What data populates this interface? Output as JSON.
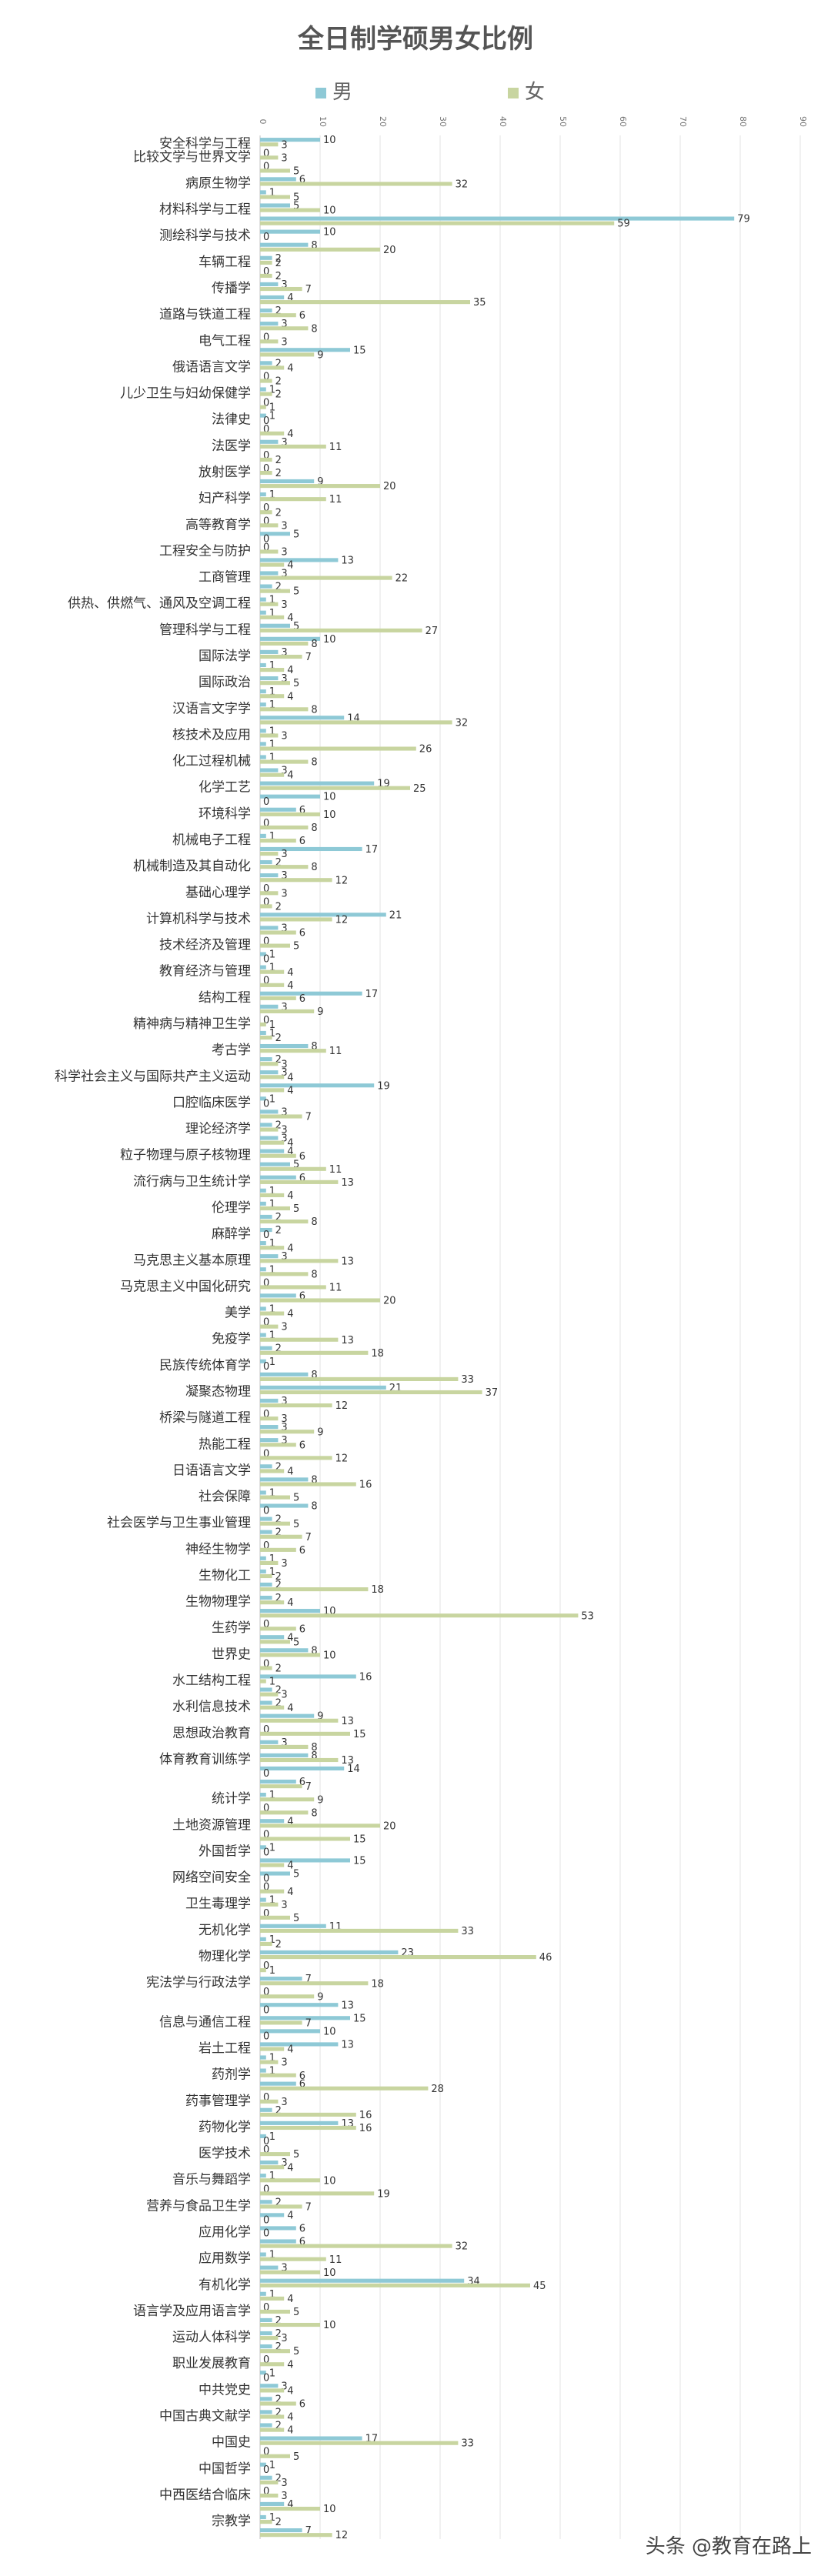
{
  "chart_data": {
    "type": "bar",
    "orientation": "horizontal",
    "title": "全日制学硕男女比例",
    "legend_position": "top",
    "grid": true,
    "xlim": [
      0,
      90
    ],
    "x_ticks": [
      "0",
      "10",
      "20",
      "30",
      "40",
      "50",
      "60",
      "70",
      "80",
      "90"
    ],
    "colors": {
      "男": "#8ec9d6",
      "女": "#c8d5a0"
    },
    "series": [
      {
        "name": "男"
      },
      {
        "name": "女"
      }
    ],
    "rows": [
      {
        "label": "安全科学与工程",
        "values": [
          10,
          3
        ]
      },
      {
        "label": "比较文学与世界文学",
        "values": [
          0,
          3
        ]
      },
      {
        "label": "",
        "values": [
          0,
          5
        ]
      },
      {
        "label": "病原生物学",
        "values": [
          6,
          32
        ]
      },
      {
        "label": "",
        "values": [
          1,
          5
        ]
      },
      {
        "label": "材料科学与工程",
        "values": [
          5,
          10
        ]
      },
      {
        "label": "",
        "values": [
          79,
          59
        ]
      },
      {
        "label": "测绘科学与技术",
        "values": [
          10,
          0
        ]
      },
      {
        "label": "",
        "values": [
          8,
          20
        ]
      },
      {
        "label": "车辆工程",
        "values": [
          2,
          2
        ]
      },
      {
        "label": "",
        "values": [
          0,
          2
        ]
      },
      {
        "label": "传播学",
        "values": [
          3,
          7
        ]
      },
      {
        "label": "",
        "values": [
          4,
          35
        ]
      },
      {
        "label": "道路与铁道工程",
        "values": [
          2,
          6
        ]
      },
      {
        "label": "",
        "values": [
          3,
          8
        ]
      },
      {
        "label": "电气工程",
        "values": [
          0,
          3
        ]
      },
      {
        "label": "",
        "values": [
          15,
          9
        ]
      },
      {
        "label": "俄语语言文学",
        "values": [
          2,
          4
        ]
      },
      {
        "label": "",
        "values": [
          0,
          2
        ]
      },
      {
        "label": "儿少卫生与妇幼保健学",
        "values": [
          1,
          2
        ]
      },
      {
        "label": "",
        "values": [
          0,
          1
        ]
      },
      {
        "label": "法律史",
        "values": [
          1,
          0
        ]
      },
      {
        "label": "",
        "values": [
          0,
          4
        ]
      },
      {
        "label": "法医学",
        "values": [
          3,
          11
        ]
      },
      {
        "label": "",
        "values": [
          0,
          2
        ]
      },
      {
        "label": "放射医学",
        "values": [
          0,
          2
        ]
      },
      {
        "label": "",
        "values": [
          9,
          20
        ]
      },
      {
        "label": "妇产科学",
        "values": [
          1,
          11
        ]
      },
      {
        "label": "",
        "values": [
          0,
          2
        ]
      },
      {
        "label": "高等教育学",
        "values": [
          0,
          3
        ]
      },
      {
        "label": "",
        "values": [
          5,
          0
        ]
      },
      {
        "label": "工程安全与防护",
        "values": [
          0,
          3
        ]
      },
      {
        "label": "",
        "values": [
          13,
          4
        ]
      },
      {
        "label": "工商管理",
        "values": [
          3,
          22
        ]
      },
      {
        "label": "",
        "values": [
          2,
          5
        ]
      },
      {
        "label": "供热、供燃气、通风及空调工程",
        "values": [
          1,
          3
        ]
      },
      {
        "label": "",
        "values": [
          1,
          4
        ]
      },
      {
        "label": "管理科学与工程",
        "values": [
          5,
          27
        ]
      },
      {
        "label": "",
        "values": [
          10,
          8
        ]
      },
      {
        "label": "国际法学",
        "values": [
          3,
          7
        ]
      },
      {
        "label": "",
        "values": [
          1,
          4
        ]
      },
      {
        "label": "国际政治",
        "values": [
          3,
          5
        ]
      },
      {
        "label": "",
        "values": [
          1,
          4
        ]
      },
      {
        "label": "汉语言文字学",
        "values": [
          1,
          8
        ]
      },
      {
        "label": "",
        "values": [
          14,
          32
        ]
      },
      {
        "label": "核技术及应用",
        "values": [
          1,
          3
        ]
      },
      {
        "label": "",
        "values": [
          1,
          26
        ]
      },
      {
        "label": "化工过程机械",
        "values": [
          1,
          8
        ]
      },
      {
        "label": "",
        "values": [
          3,
          4
        ]
      },
      {
        "label": "化学工艺",
        "values": [
          19,
          25
        ]
      },
      {
        "label": "",
        "values": [
          10,
          0
        ]
      },
      {
        "label": "环境科学",
        "values": [
          6,
          10
        ]
      },
      {
        "label": "",
        "values": [
          0,
          8
        ]
      },
      {
        "label": "机械电子工程",
        "values": [
          1,
          6
        ]
      },
      {
        "label": "",
        "values": [
          17,
          3
        ]
      },
      {
        "label": "机械制造及其自动化",
        "values": [
          2,
          8
        ]
      },
      {
        "label": "",
        "values": [
          3,
          12
        ]
      },
      {
        "label": "基础心理学",
        "values": [
          0,
          3
        ]
      },
      {
        "label": "",
        "values": [
          0,
          2
        ]
      },
      {
        "label": "计算机科学与技术",
        "values": [
          21,
          12
        ]
      },
      {
        "label": "",
        "values": [
          3,
          6
        ]
      },
      {
        "label": "技术经济及管理",
        "values": [
          0,
          5
        ]
      },
      {
        "label": "",
        "values": [
          1,
          0
        ]
      },
      {
        "label": "教育经济与管理",
        "values": [
          1,
          4
        ]
      },
      {
        "label": "",
        "values": [
          0,
          4
        ]
      },
      {
        "label": "结构工程",
        "values": [
          17,
          6
        ]
      },
      {
        "label": "",
        "values": [
          3,
          9
        ]
      },
      {
        "label": "精神病与精神卫生学",
        "values": [
          0,
          1
        ]
      },
      {
        "label": "",
        "values": [
          1,
          2
        ]
      },
      {
        "label": "考古学",
        "values": [
          8,
          11
        ]
      },
      {
        "label": "",
        "values": [
          2,
          3
        ]
      },
      {
        "label": "科学社会主义与国际共产主义运动",
        "values": [
          3,
          4
        ]
      },
      {
        "label": "",
        "values": [
          19,
          4
        ]
      },
      {
        "label": "口腔临床医学",
        "values": [
          1,
          0
        ]
      },
      {
        "label": "",
        "values": [
          3,
          7
        ]
      },
      {
        "label": "理论经济学",
        "values": [
          2,
          3
        ]
      },
      {
        "label": "",
        "values": [
          3,
          4
        ]
      },
      {
        "label": "粒子物理与原子核物理",
        "values": [
          4,
          6
        ]
      },
      {
        "label": "",
        "values": [
          5,
          11
        ]
      },
      {
        "label": "流行病与卫生统计学",
        "values": [
          6,
          13
        ]
      },
      {
        "label": "",
        "values": [
          1,
          4
        ]
      },
      {
        "label": "伦理学",
        "values": [
          1,
          5
        ]
      },
      {
        "label": "",
        "values": [
          2,
          8
        ]
      },
      {
        "label": "麻醉学",
        "values": [
          2,
          0
        ]
      },
      {
        "label": "",
        "values": [
          1,
          4
        ]
      },
      {
        "label": "马克思主义基本原理",
        "values": [
          3,
          13
        ]
      },
      {
        "label": "",
        "values": [
          1,
          8
        ]
      },
      {
        "label": "马克思主义中国化研究",
        "values": [
          0,
          11
        ]
      },
      {
        "label": "",
        "values": [
          6,
          20
        ]
      },
      {
        "label": "美学",
        "values": [
          1,
          4
        ]
      },
      {
        "label": "",
        "values": [
          0,
          3
        ]
      },
      {
        "label": "免疫学",
        "values": [
          1,
          13
        ]
      },
      {
        "label": "",
        "values": [
          2,
          18
        ]
      },
      {
        "label": "民族传统体育学",
        "values": [
          1,
          0
        ]
      },
      {
        "label": "",
        "values": [
          8,
          33
        ]
      },
      {
        "label": "凝聚态物理",
        "values": [
          21,
          37
        ]
      },
      {
        "label": "",
        "values": [
          3,
          12
        ]
      },
      {
        "label": "桥梁与隧道工程",
        "values": [
          0,
          3
        ]
      },
      {
        "label": "",
        "values": [
          3,
          9
        ]
      },
      {
        "label": "热能工程",
        "values": [
          3,
          6
        ]
      },
      {
        "label": "",
        "values": [
          0,
          12
        ]
      },
      {
        "label": "日语语言文学",
        "values": [
          2,
          4
        ]
      },
      {
        "label": "",
        "values": [
          8,
          16
        ]
      },
      {
        "label": "社会保障",
        "values": [
          1,
          5
        ]
      },
      {
        "label": "",
        "values": [
          8,
          0
        ]
      },
      {
        "label": "社会医学与卫生事业管理",
        "values": [
          2,
          5
        ]
      },
      {
        "label": "",
        "values": [
          2,
          7
        ]
      },
      {
        "label": "神经生物学",
        "values": [
          0,
          6
        ]
      },
      {
        "label": "",
        "values": [
          1,
          3
        ]
      },
      {
        "label": "生物化工",
        "values": [
          1,
          2
        ]
      },
      {
        "label": "",
        "values": [
          2,
          18
        ]
      },
      {
        "label": "生物物理学",
        "values": [
          2,
          4
        ]
      },
      {
        "label": "",
        "values": [
          10,
          53
        ]
      },
      {
        "label": "生药学",
        "values": [
          0,
          6
        ]
      },
      {
        "label": "",
        "values": [
          4,
          5
        ]
      },
      {
        "label": "世界史",
        "values": [
          8,
          10
        ]
      },
      {
        "label": "",
        "values": [
          0,
          2
        ]
      },
      {
        "label": "水工结构工程",
        "values": [
          16,
          1
        ]
      },
      {
        "label": "",
        "values": [
          2,
          3
        ]
      },
      {
        "label": "水利信息技术",
        "values": [
          2,
          4
        ]
      },
      {
        "label": "",
        "values": [
          9,
          13
        ]
      },
      {
        "label": "思想政治教育",
        "values": [
          0,
          15
        ]
      },
      {
        "label": "",
        "values": [
          3,
          8
        ]
      },
      {
        "label": "体育教育训练学",
        "values": [
          8,
          13
        ]
      },
      {
        "label": "",
        "values": [
          14,
          0
        ]
      },
      {
        "label": "",
        "values": [
          6,
          7
        ]
      },
      {
        "label": "统计学",
        "values": [
          1,
          9
        ]
      },
      {
        "label": "",
        "values": [
          0,
          8
        ]
      },
      {
        "label": "土地资源管理",
        "values": [
          4,
          20
        ]
      },
      {
        "label": "",
        "values": [
          0,
          15
        ]
      },
      {
        "label": "外国哲学",
        "values": [
          1,
          0
        ]
      },
      {
        "label": "",
        "values": [
          15,
          4
        ]
      },
      {
        "label": "网络空间安全",
        "values": [
          5,
          0
        ]
      },
      {
        "label": "",
        "values": [
          0,
          4
        ]
      },
      {
        "label": "卫生毒理学",
        "values": [
          1,
          3
        ]
      },
      {
        "label": "",
        "values": [
          0,
          5
        ]
      },
      {
        "label": "无机化学",
        "values": [
          11,
          33
        ]
      },
      {
        "label": "",
        "values": [
          1,
          2
        ]
      },
      {
        "label": "物理化学",
        "values": [
          23,
          46
        ]
      },
      {
        "label": "",
        "values": [
          0,
          1
        ]
      },
      {
        "label": "宪法学与行政法学",
        "values": [
          7,
          18
        ]
      },
      {
        "label": "",
        "values": [
          0,
          9
        ]
      },
      {
        "label": "",
        "values": [
          13,
          0
        ]
      },
      {
        "label": "信息与通信工程",
        "values": [
          15,
          7
        ]
      },
      {
        "label": "",
        "values": [
          10,
          0
        ]
      },
      {
        "label": "岩土工程",
        "values": [
          13,
          4
        ]
      },
      {
        "label": "",
        "values": [
          1,
          3
        ]
      },
      {
        "label": "药剂学",
        "values": [
          1,
          6
        ]
      },
      {
        "label": "",
        "values": [
          6,
          28
        ]
      },
      {
        "label": "药事管理学",
        "values": [
          0,
          3
        ]
      },
      {
        "label": "",
        "values": [
          2,
          16
        ]
      },
      {
        "label": "药物化学",
        "values": [
          13,
          16
        ]
      },
      {
        "label": "",
        "values": [
          1,
          0
        ]
      },
      {
        "label": "医学技术",
        "values": [
          0,
          5
        ]
      },
      {
        "label": "",
        "values": [
          3,
          4
        ]
      },
      {
        "label": "音乐与舞蹈学",
        "values": [
          1,
          10
        ]
      },
      {
        "label": "",
        "values": [
          0,
          19
        ]
      },
      {
        "label": "营养与食品卫生学",
        "values": [
          2,
          7
        ]
      },
      {
        "label": "",
        "values": [
          4,
          0
        ]
      },
      {
        "label": "应用化学",
        "values": [
          6,
          0
        ]
      },
      {
        "label": "",
        "values": [
          6,
          32
        ]
      },
      {
        "label": "应用数学",
        "values": [
          1,
          11
        ]
      },
      {
        "label": "",
        "values": [
          3,
          10
        ]
      },
      {
        "label": "有机化学",
        "values": [
          34,
          45
        ]
      },
      {
        "label": "",
        "values": [
          1,
          4
        ]
      },
      {
        "label": "语言学及应用语言学",
        "values": [
          0,
          5
        ]
      },
      {
        "label": "",
        "values": [
          2,
          10
        ]
      },
      {
        "label": "运动人体科学",
        "values": [
          2,
          3
        ]
      },
      {
        "label": "",
        "values": [
          2,
          5
        ]
      },
      {
        "label": "职业发展教育",
        "values": [
          0,
          4
        ]
      },
      {
        "label": "",
        "values": [
          1,
          0
        ]
      },
      {
        "label": "中共党史",
        "values": [
          3,
          4
        ]
      },
      {
        "label": "",
        "values": [
          2,
          6
        ]
      },
      {
        "label": "中国古典文献学",
        "values": [
          2,
          4
        ]
      },
      {
        "label": "",
        "values": [
          2,
          4
        ]
      },
      {
        "label": "中国史",
        "values": [
          17,
          33
        ]
      },
      {
        "label": "",
        "values": [
          0,
          5
        ]
      },
      {
        "label": "中国哲学",
        "values": [
          1,
          0
        ]
      },
      {
        "label": "",
        "values": [
          2,
          3
        ]
      },
      {
        "label": "中西医结合临床",
        "values": [
          0,
          3
        ]
      },
      {
        "label": "",
        "values": [
          4,
          10
        ]
      },
      {
        "label": "宗教学",
        "values": [
          1,
          2
        ]
      },
      {
        "label": "",
        "values": [
          7,
          12
        ]
      }
    ]
  },
  "watermark": "头条 @教育在路上"
}
